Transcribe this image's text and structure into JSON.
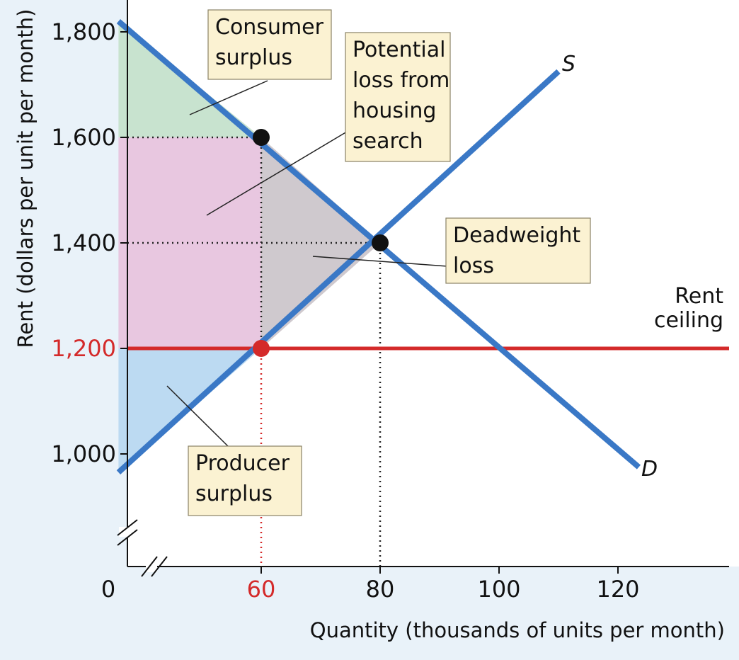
{
  "chart_data": {
    "type": "line",
    "title": "",
    "xlabel": "Quantity (thousands of units per month)",
    "ylabel": "Rent (dollars per unit per month)",
    "x_ticks": [
      {
        "value": 60,
        "label": "60",
        "highlight": true
      },
      {
        "value": 80,
        "label": "80",
        "highlight": false
      },
      {
        "value": 100,
        "label": "100",
        "highlight": false
      },
      {
        "value": 120,
        "label": "120",
        "highlight": false
      }
    ],
    "y_ticks": [
      {
        "value": 1000,
        "label": "1,000",
        "highlight": false
      },
      {
        "value": 1200,
        "label": "1,200",
        "highlight": true
      },
      {
        "value": 1400,
        "label": "1,400",
        "highlight": false
      },
      {
        "value": 1600,
        "label": "1,600",
        "highlight": false
      },
      {
        "value": 1800,
        "label": "1,800",
        "highlight": false
      }
    ],
    "origin_label": "0",
    "axis_breaks": true,
    "xlim": [
      36,
      144
    ],
    "ylim": [
      820,
      1840
    ],
    "series": [
      {
        "name": "D",
        "color": "#3a78c6",
        "x": [
          36,
          123.5
        ],
        "y": [
          1820,
          975
        ]
      },
      {
        "name": "S",
        "color": "#3a78c6",
        "x": [
          36,
          110
        ],
        "y": [
          965,
          1725
        ]
      }
    ],
    "rent_ceiling": {
      "value": 1200,
      "label_lines": [
        "Rent",
        "ceiling"
      ],
      "color": "#d42a2a"
    },
    "points": [
      {
        "name": "equilibrium",
        "x": 80,
        "y": 1400,
        "color": "#111111"
      },
      {
        "name": "demand-at-ceiling-quantity",
        "x": 60,
        "y": 1600,
        "color": "#111111"
      },
      {
        "name": "ceiling-point",
        "x": 60,
        "y": 1200,
        "color": "#d42a2a"
      }
    ],
    "regions": [
      {
        "name": "consumer-surplus",
        "color": "#c8e3cf",
        "label_lines": [
          "Consumer",
          "surplus"
        ]
      },
      {
        "name": "potential-loss",
        "color": "#e8c7e0",
        "label_lines": [
          "Potential",
          "loss from",
          "housing",
          "search"
        ]
      },
      {
        "name": "deadweight-loss",
        "color": "#cfc9ce",
        "label_lines": [
          "Deadweight",
          "loss"
        ]
      },
      {
        "name": "producer-surplus",
        "color": "#bcdaf2",
        "label_lines": [
          "Producer",
          "surplus"
        ]
      }
    ],
    "grid": false,
    "colors": {
      "curve": "#3a78c6",
      "ceiling": "#d42a2a",
      "label_box": "#fbf2d2",
      "background": "#ffffff"
    }
  }
}
